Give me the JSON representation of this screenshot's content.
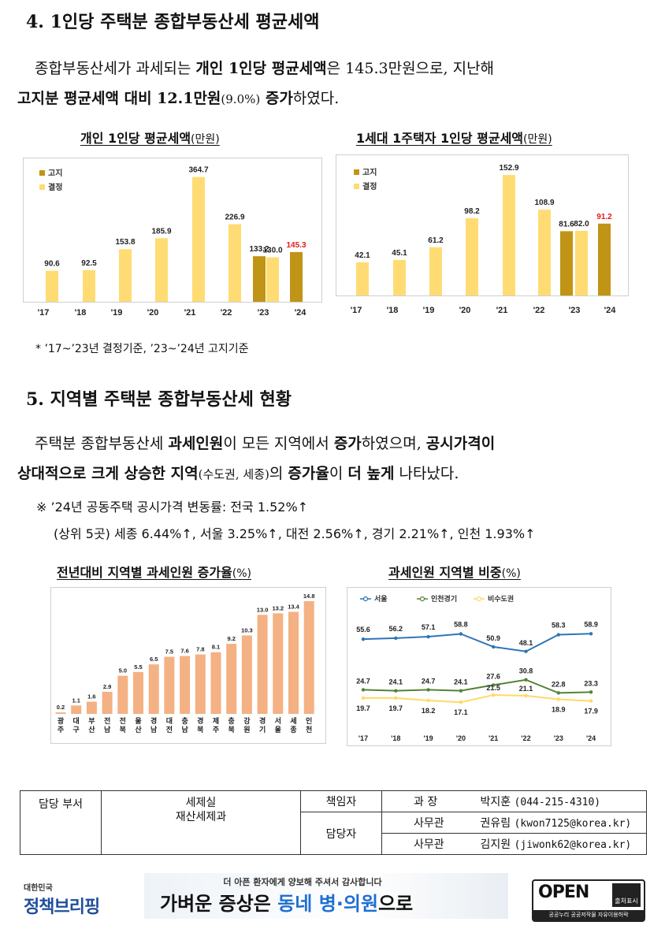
{
  "section4": {
    "heading": "4. 1인당 주택분 종합부동산세 평균세액",
    "para_line1": {
      "t1": "종합부동산세가 과세되는 ",
      "b1": "개인 1인당 평균세액",
      "t2": "은 145.3만원으로, 지난해",
      "t3": "고지분 평균세액 대비 12.1만원",
      "t4": "(9.0%)",
      "b2": " 증가",
      "t5": "하였다."
    },
    "note": "* ’17~’23년 결정기준, ’23~’24년 고지기준"
  },
  "section5": {
    "heading": "5. 지역별 주택분 종합부동산세 현황",
    "para": {
      "t1": "주택분 종합부동산세 ",
      "b1": "과세인원",
      "t2": "이 모든 지역에서 ",
      "b2": "증가",
      "t3": "하였으며, ",
      "b3": "공시가격이",
      "b4": "상대적으로 크게 상승한 지역",
      "t4": "(수도권, 세종)",
      "t5": "의 ",
      "b5": "증가율",
      "t6": "이 ",
      "b6": "더 높게",
      "t7": " 나타났다."
    },
    "note_line1": "※ ’24년 공동주택 공시가격 변동률: 전국 1.52%↑",
    "note_line2": "(상위 5곳) 세종 6.44%↑, 서울 3.25%↑, 대전 2.56%↑, 경기 2.21%↑, 인천 1.93%↑"
  },
  "chart_data": [
    {
      "type": "bar",
      "title": "개인 1인당 평균세액",
      "title_unit": "(만원)",
      "categories": [
        "'17",
        "'18",
        "'19",
        "'20",
        "'21",
        "'22",
        "'23",
        "'23",
        "'24"
      ],
      "series_legend": [
        "고지",
        "결정"
      ],
      "values": [
        90.6,
        92.5,
        153.8,
        185.9,
        364.7,
        226.9,
        133.2,
        130.0,
        145.3
      ],
      "kinds": [
        "결정",
        "결정",
        "결정",
        "결정",
        "결정",
        "결정",
        "고지",
        "결정",
        "고지"
      ],
      "x_labels": [
        "'17",
        "'18",
        "'19",
        "'20",
        "'21",
        "'22",
        "'23",
        "'24"
      ],
      "colors": {
        "고지": "#C09415",
        "결정": "#FFDC73",
        "highlight": "#E11B1B"
      },
      "ylim": [
        0,
        380
      ]
    },
    {
      "type": "bar",
      "title": "1세대 1주택자 1인당 평균세액",
      "title_unit": "(만원)",
      "categories": [
        "'17",
        "'18",
        "'19",
        "'20",
        "'21",
        "'22",
        "'23",
        "'23",
        "'24"
      ],
      "series_legend": [
        "고지",
        "결정"
      ],
      "values": [
        42.1,
        45.1,
        61.2,
        98.2,
        152.9,
        108.9,
        81.6,
        82.0,
        91.2
      ],
      "kinds": [
        "결정",
        "결정",
        "결정",
        "결정",
        "결정",
        "결정",
        "고지",
        "결정",
        "고지"
      ],
      "x_labels": [
        "'17",
        "'18",
        "'19",
        "'20",
        "'21",
        "'22",
        "'23",
        "'24"
      ],
      "colors": {
        "고지": "#C09415",
        "결정": "#FFDC73",
        "highlight": "#E11B1B"
      },
      "ylim": [
        0,
        165
      ]
    },
    {
      "type": "bar",
      "title": "전년대비 지역별 과세인원 증가율",
      "title_unit": "(%)",
      "categories": [
        "광주",
        "대구",
        "부산",
        "전남",
        "전북",
        "울산",
        "경남",
        "대전",
        "충남",
        "경북",
        "제주",
        "충북",
        "강원",
        "경기",
        "서울",
        "세종",
        "인천"
      ],
      "values": [
        0.2,
        1.1,
        1.6,
        2.9,
        5.0,
        5.5,
        6.5,
        7.5,
        7.6,
        7.8,
        8.1,
        9.2,
        10.3,
        13.0,
        13.2,
        13.4,
        14.8
      ],
      "colors": {
        "bar": "#F4B183"
      },
      "ylim": [
        0,
        15
      ]
    },
    {
      "type": "line",
      "title": "과세인원 지역별 비중",
      "title_unit": "(%)",
      "x": [
        "'17",
        "'18",
        "'19",
        "'20",
        "'21",
        "'22",
        "'23",
        "'24"
      ],
      "series": [
        {
          "name": "서울",
          "values": [
            55.6,
            56.2,
            57.1,
            58.8,
            50.9,
            48.1,
            58.3,
            58.9
          ],
          "color": "#2E75B6"
        },
        {
          "name": "인천경기",
          "values": [
            24.7,
            24.1,
            24.7,
            24.1,
            27.6,
            30.8,
            22.8,
            23.3
          ],
          "color": "#548235"
        },
        {
          "name": "비수도권",
          "values": [
            19.7,
            19.7,
            18.2,
            17.1,
            21.5,
            21.1,
            18.9,
            17.9
          ],
          "color": "#FFD966"
        }
      ],
      "legend_position": "top-left"
    }
  ],
  "contact": {
    "dept_label": "담당 부서",
    "dept_line1": "세제실",
    "dept_line2": "재산세제과",
    "resp_label": "책임자",
    "staff_label": "담당자",
    "rows": [
      {
        "title": "과  장",
        "name": "박지훈",
        "info": "(044-215-4310)"
      },
      {
        "title": "사무관",
        "name": "권유림",
        "info": "(kwon7125@korea.kr)"
      },
      {
        "title": "사무관",
        "name": "김지원",
        "info": "(jiwonk62@korea.kr)"
      }
    ]
  },
  "footer": {
    "logo_small": "대한민국",
    "logo_main": "정책브리핑",
    "banner_small": "더 아픈 환자에게 양보해 주셔서 감사합니다",
    "banner_big_1": "가벼운 증상은 ",
    "banner_big_2": "동네 병·의원",
    "banner_big_3": "으로",
    "open_main": "OPEN",
    "open_badge": "출처표시",
    "open_sub": "공공누리 공공저작물 자유이용허락"
  }
}
